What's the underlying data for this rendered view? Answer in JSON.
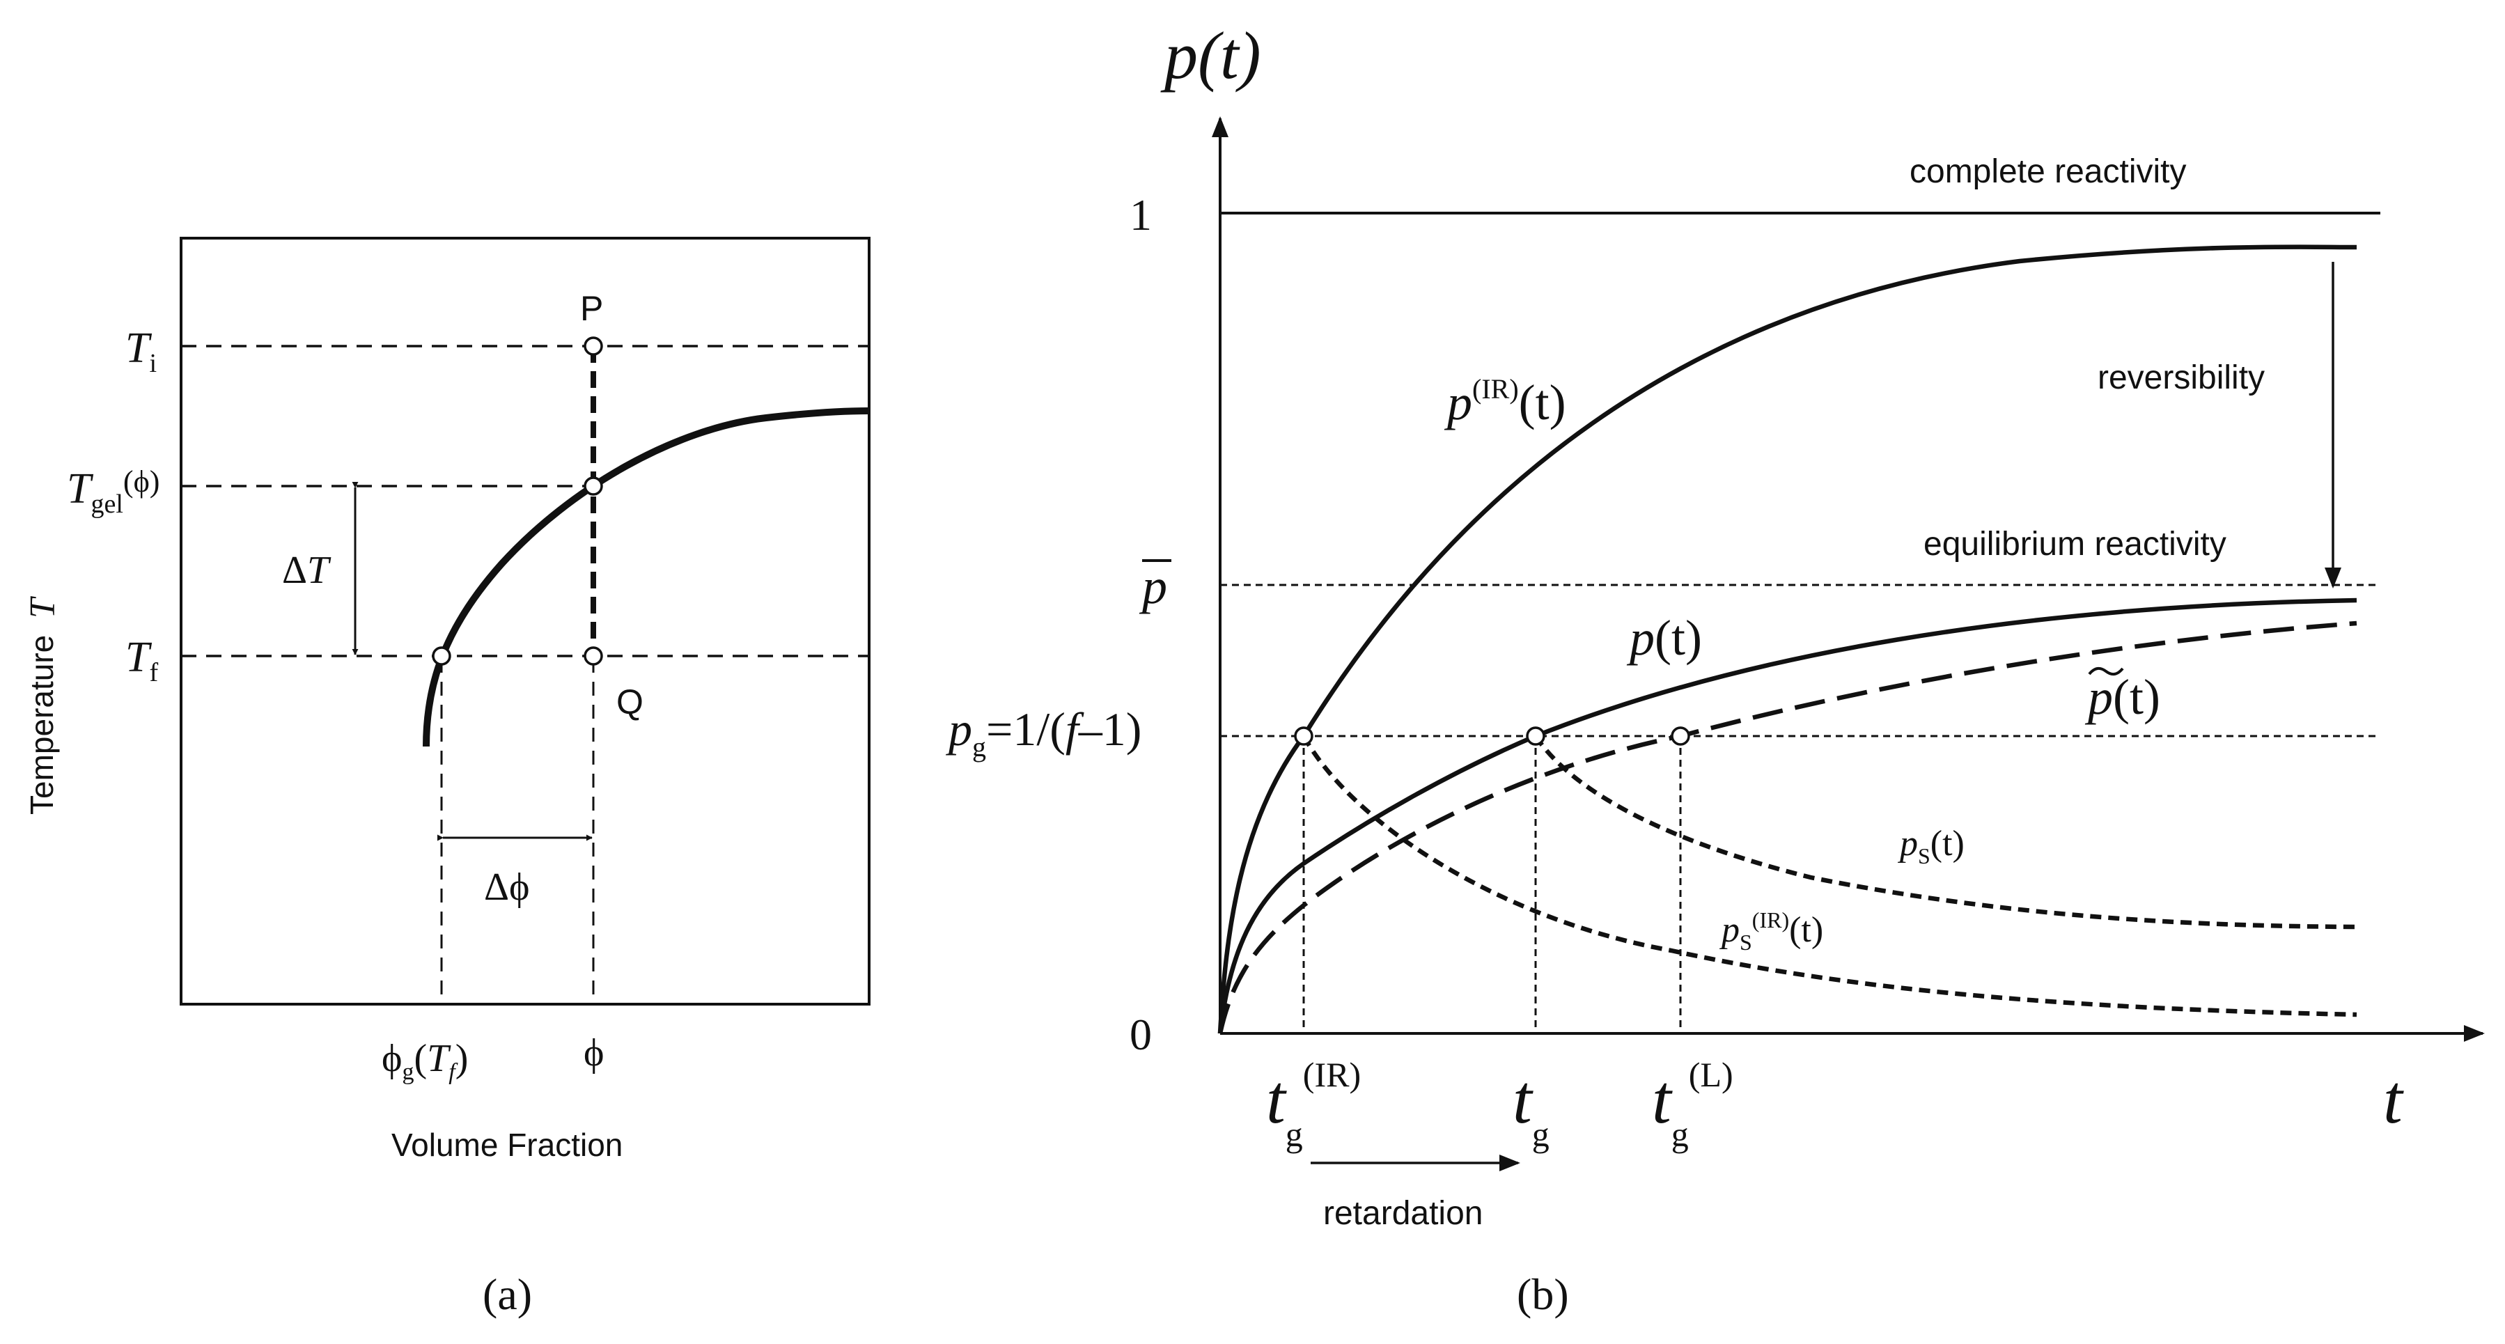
{
  "panel_a": {
    "caption": "(a)",
    "y_axis_label": "Temperature",
    "y_axis_symbol": "T",
    "x_axis_label": "Volume Fraction",
    "label_Ti_main": "T",
    "label_Ti_sub": "i",
    "label_Tgel_main": "T",
    "label_Tgel_sub": "gel",
    "label_Tgel_arg": "(ϕ)",
    "label_Tf_main": "T",
    "label_Tf_sub": "f",
    "label_dT_delta": "Δ",
    "label_dT_T": "T",
    "label_P": "P",
    "label_Q": "Q",
    "label_dphi": "Δϕ",
    "label_phig_main": "ϕ",
    "label_phig_sub": "g",
    "label_phig_open": "(",
    "label_phig_T": "T",
    "label_phig_Tsub": "f",
    "label_phig_close": ")",
    "label_phi": "ϕ"
  },
  "panel_b": {
    "caption": "(b)",
    "y_title_p": "p",
    "y_title_rest": "(t)",
    "x_title": "t",
    "tick_1": "1",
    "tick_0": "0",
    "tick_pbar": "p",
    "tick_pg_main": "p",
    "tick_pg_sub": "g",
    "tick_pg_rest": "=1/(",
    "tick_pg_f": "f",
    "tick_pg_tail": "–1)",
    "label_complete": "complete reactivity",
    "label_reversibility": "reversibility",
    "label_equilibrium": "equilibrium reactivity",
    "label_pIR_main": "p",
    "label_pIR_sup": "(IR)",
    "label_pIR_rest": "(t)",
    "label_p_main": "p",
    "label_p_rest": "(t)",
    "label_ptilde_main": "p",
    "label_ptilde_rest": "(t)",
    "label_ps_main": "p",
    "label_ps_sub": "S",
    "label_ps_rest": "(t)",
    "label_psIR_main": "p",
    "label_psIR_sub": "S",
    "label_psIR_sup": "(IR)",
    "label_psIR_rest": "(t)",
    "label_tgIR_t": "t",
    "label_tgIR_sub": "g",
    "label_tgIR_sup": "(IR)",
    "label_tg_t": "t",
    "label_tg_sub": "g",
    "label_tgL_t": "t",
    "label_tgL_sub": "g",
    "label_tgL_sup": "(L)",
    "label_retardation": "retardation"
  }
}
